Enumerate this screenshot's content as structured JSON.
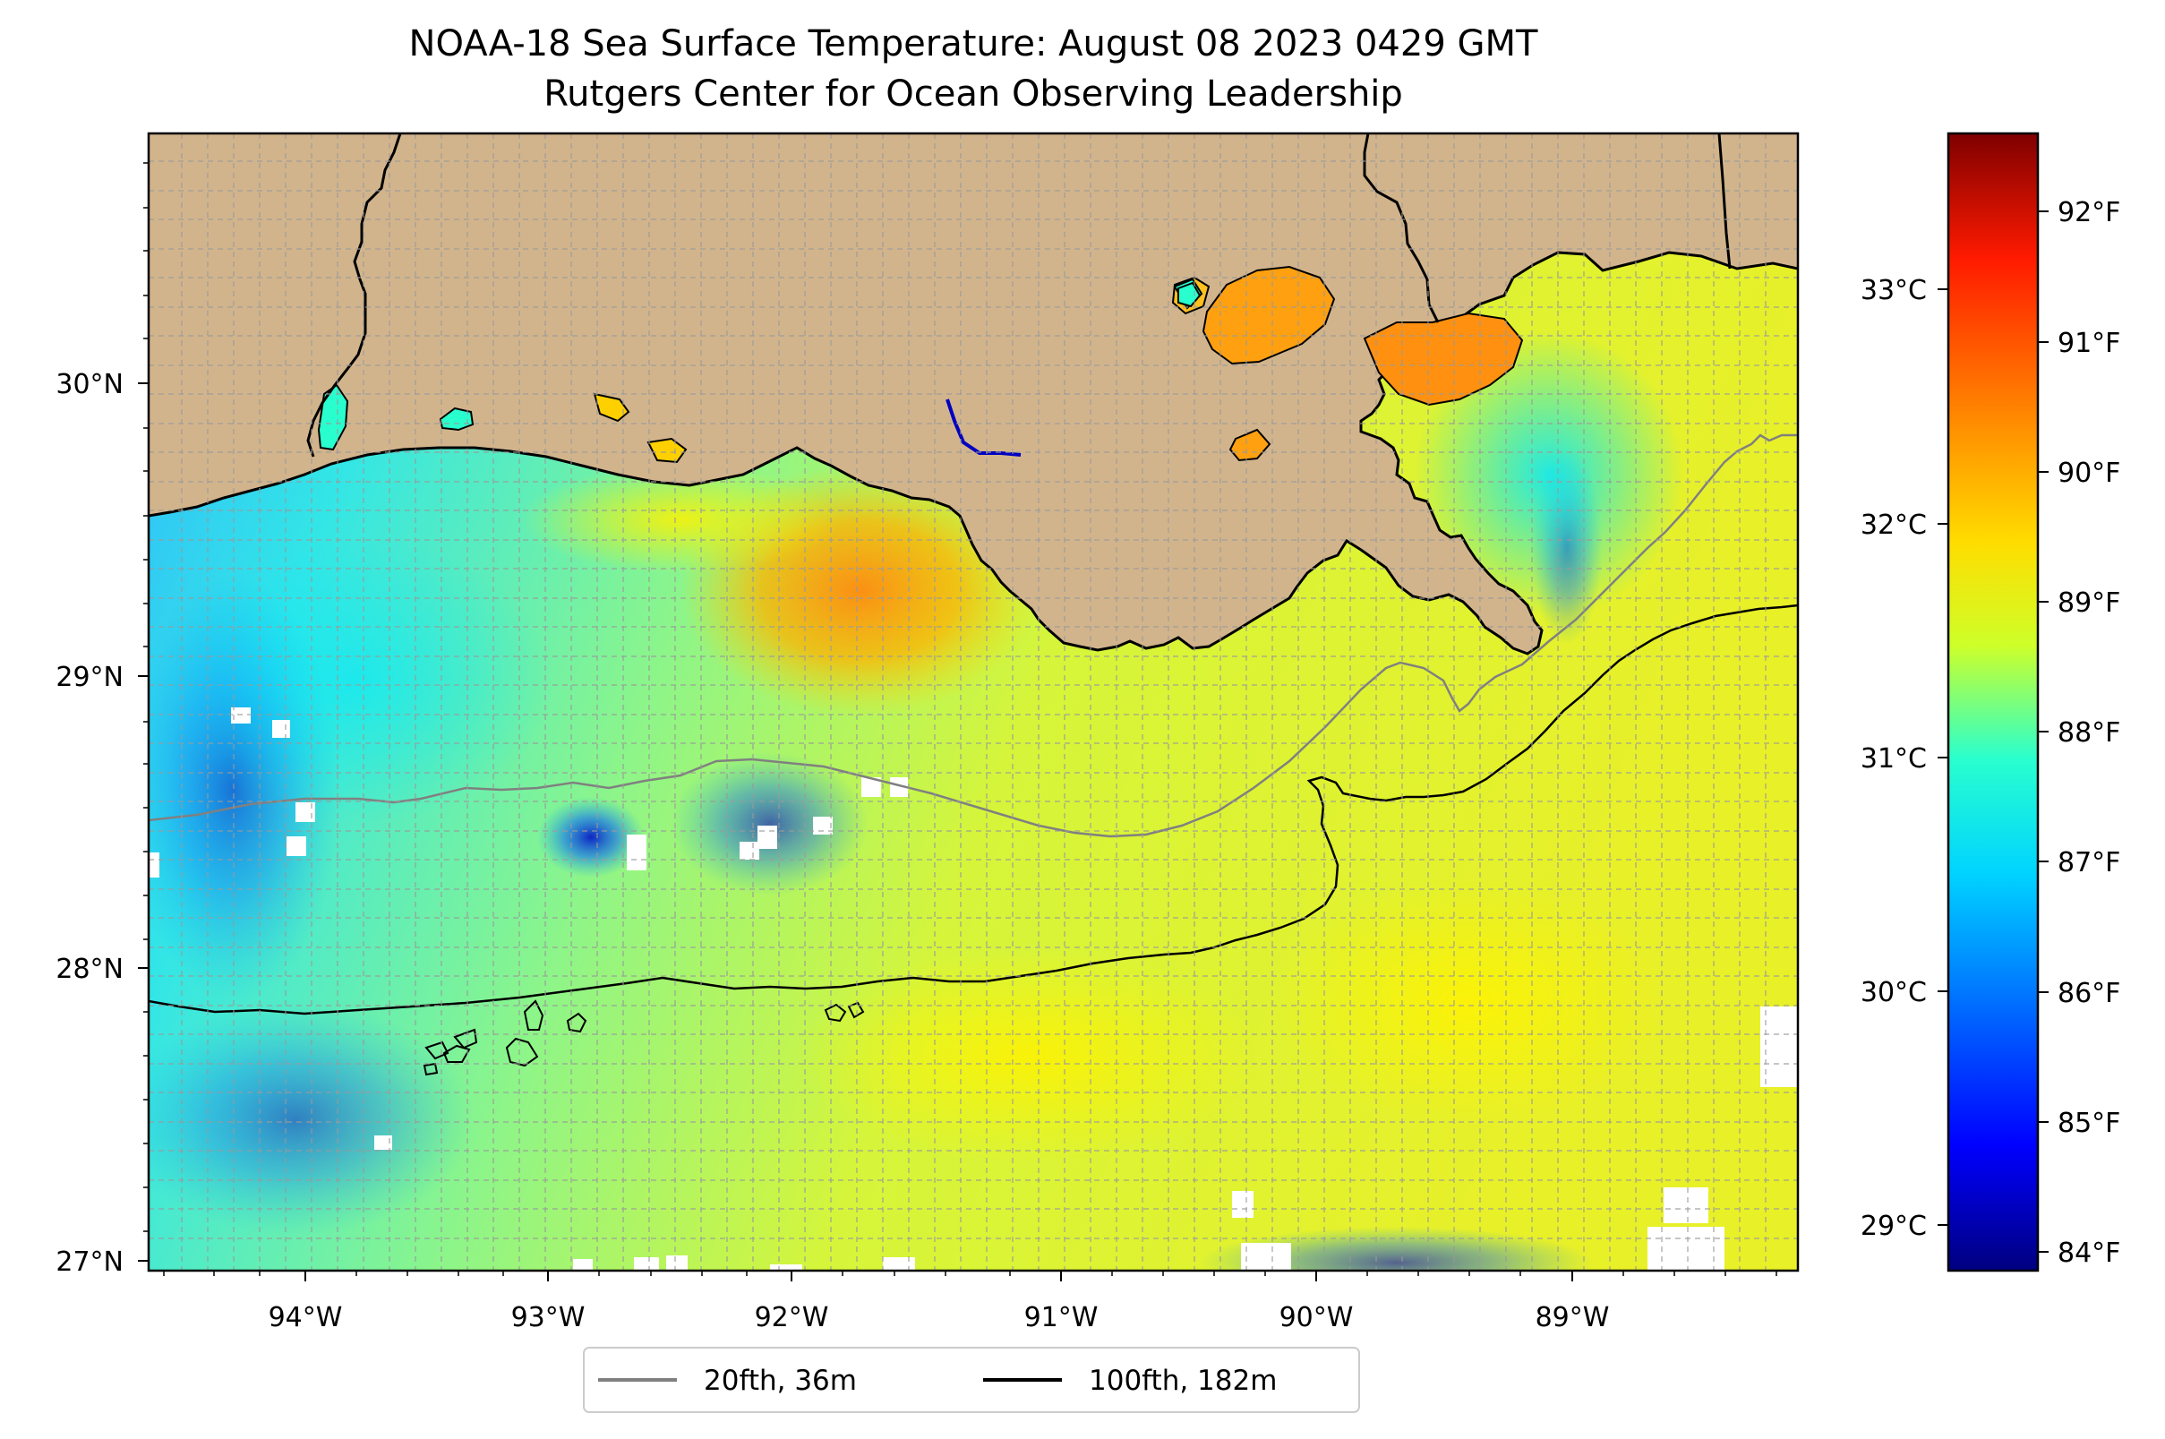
{
  "title": {
    "line1": "NOAA-18 Sea Surface Temperature: August 08 2023 0429 GMT",
    "line2": "Rutgers Center for Ocean Observing Leadership"
  },
  "map": {
    "land_color": "#d2b48c",
    "gridlines": "dashed",
    "lon_ticks": [
      "94°W",
      "93°W",
      "92°W",
      "91°W",
      "90°W",
      "89°W"
    ],
    "lat_ticks": [
      "30°N",
      "29°N",
      "28°N",
      "27°N"
    ],
    "lon_range": [
      -94.55,
      -88.2
    ],
    "lat_range": [
      26.95,
      30.85
    ]
  },
  "colorbar": {
    "colormap": "jet",
    "celsius_ticks": [
      "33°C",
      "32°C",
      "31°C",
      "30°C",
      "29°C"
    ],
    "fahrenheit_ticks": [
      "92°F",
      "91°F",
      "90°F",
      "89°F",
      "88°F",
      "87°F",
      "86°F",
      "85°F",
      "84°F"
    ],
    "range_F": [
      83.8,
      92.6
    ]
  },
  "legend": {
    "items": [
      {
        "label": "20fth, 36m",
        "color": "#808080"
      },
      {
        "label": "100fth, 182m",
        "color": "#000000"
      }
    ]
  }
}
